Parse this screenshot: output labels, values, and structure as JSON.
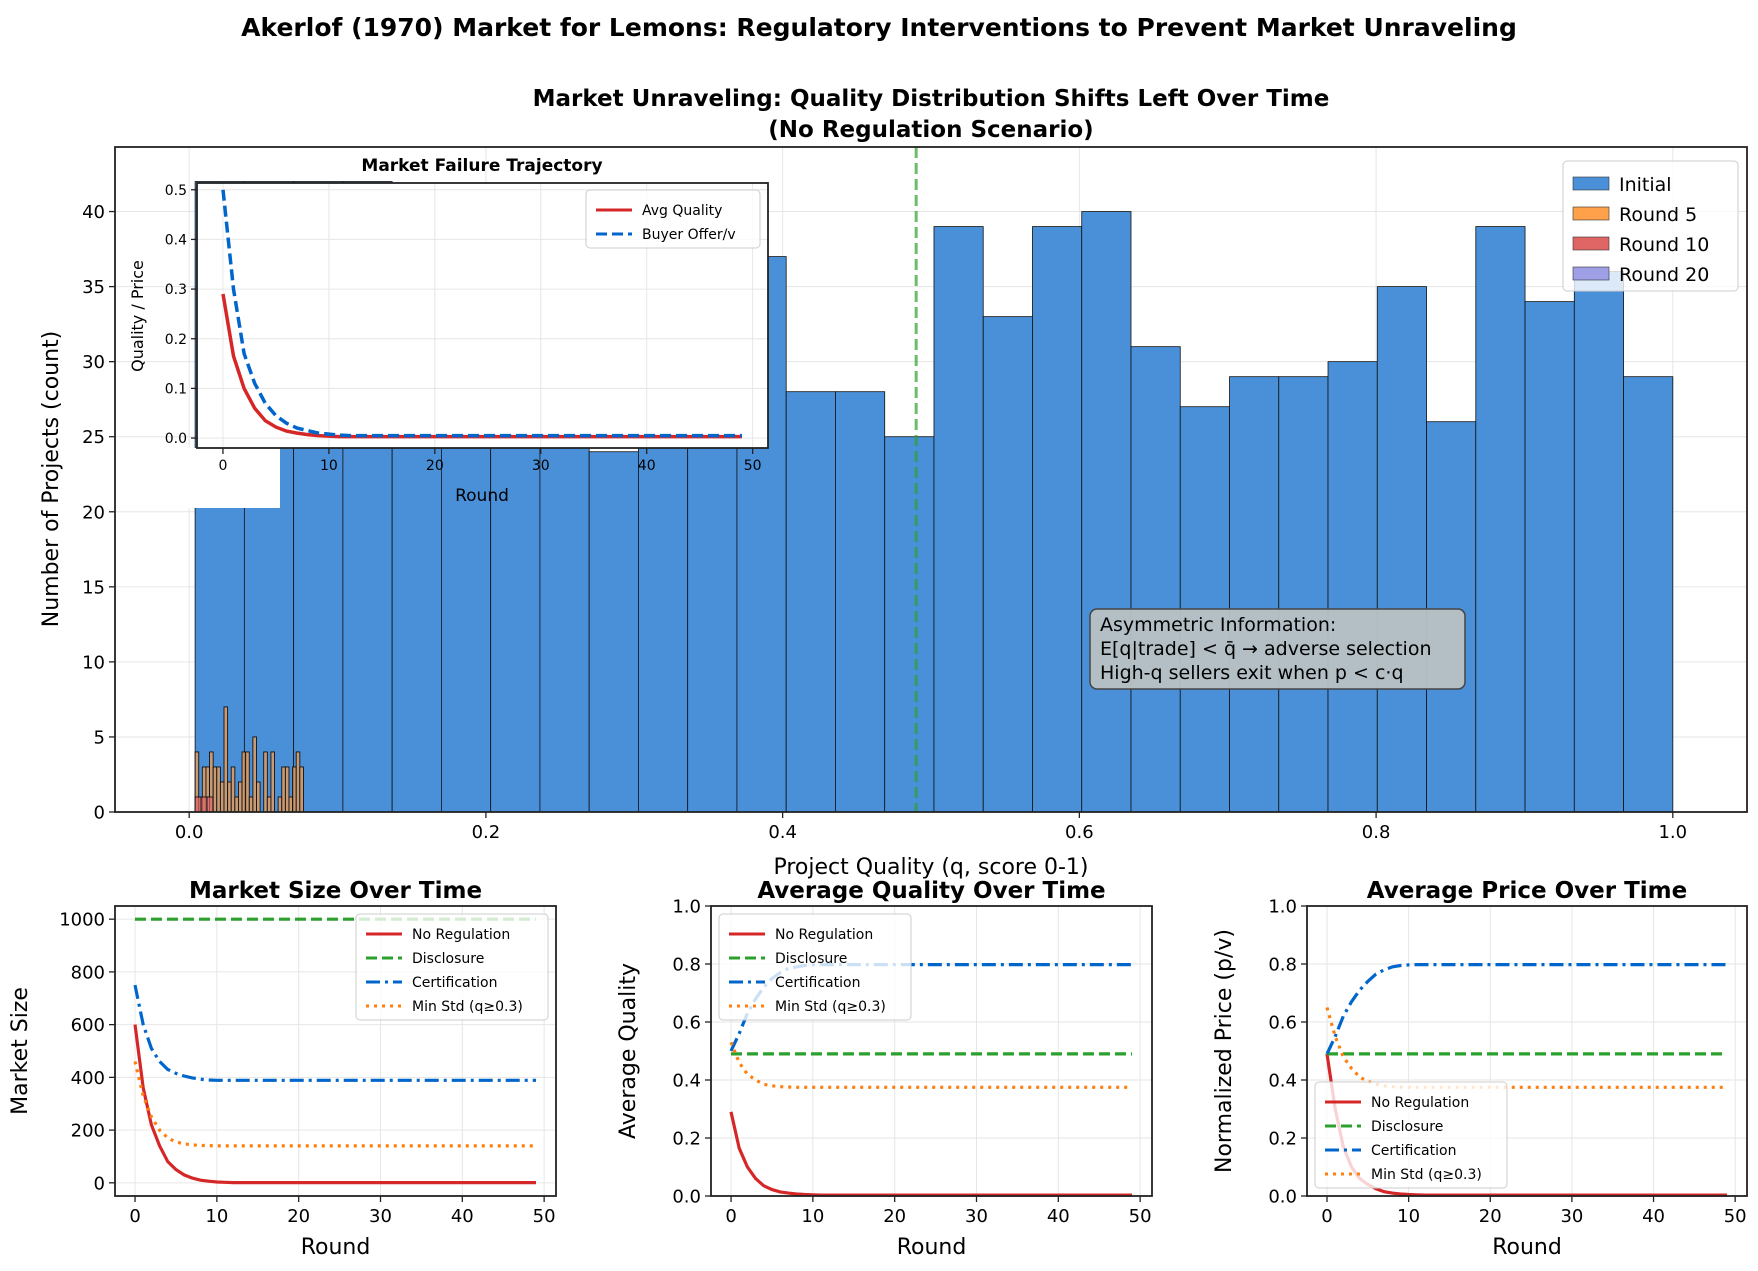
{
  "suptitle": "Akerlof (1970) Market for Lemons: Regulatory Interventions to Prevent Market Unraveling",
  "chart_data": [
    {
      "type": "bar",
      "title_line1": "Market Unraveling: Quality Distribution Shifts Left Over Time",
      "title_line2": "(No Regulation Scenario)",
      "xlabel": "Project Quality (q, score 0-1)",
      "ylabel": "Number of Projects (count)",
      "xlim": [
        -0.05,
        1.05
      ],
      "ylim": [
        0,
        44.3
      ],
      "xticks": [
        "0.0",
        "0.2",
        "0.4",
        "0.6",
        "0.8",
        "1.0"
      ],
      "yticks": [
        "0",
        "5",
        "10",
        "15",
        "20",
        "25",
        "30",
        "35",
        "40"
      ],
      "grid": true,
      "legend_position": "top-right",
      "series": [
        {
          "name": "Initial",
          "color": "#4a90d9",
          "bin_start": 0.004,
          "bin_end": 1.0,
          "values": [
            42,
            42,
            42,
            42,
            36,
            34,
            33,
            35,
            24,
            33,
            36,
            37,
            28,
            28,
            25,
            39,
            33,
            39,
            40,
            31,
            27,
            29,
            29,
            30,
            35,
            26,
            39,
            34,
            36,
            29
          ]
        },
        {
          "name": "Round 5",
          "color": "#ffa04a",
          "bin_start": 0.004,
          "bin_end": 0.077,
          "values": [
            4,
            1,
            3,
            3,
            4,
            3,
            3,
            2,
            7,
            2,
            3,
            1,
            2,
            4,
            4,
            1,
            5,
            2,
            0,
            4,
            1,
            4,
            0,
            1,
            3,
            3,
            1,
            3,
            4,
            3
          ]
        },
        {
          "name": "Round 10",
          "color": "#e06666",
          "bin_start": 0.004,
          "bin_end": 0.016,
          "values": [
            1,
            1,
            1
          ]
        },
        {
          "name": "Round 20",
          "color": "#9f9fe6",
          "values": []
        }
      ],
      "threshold_line": {
        "x": 0.49,
        "color": "#2ca02c"
      },
      "annotation": [
        "Asymmetric Information:",
        "E[q|trade] < q̄ → adverse selection",
        "High-q sellers exit when p < c·q"
      ],
      "inset": {
        "type": "line",
        "title": "Market Failure Trajectory",
        "xlabel": "Round",
        "ylabel": "Quality / Price",
        "xlim": [
          -2.45,
          51.45
        ],
        "ylim": [
          -0.02,
          0.5136
        ],
        "xticks": [
          "0",
          "10",
          "20",
          "30",
          "40",
          "50"
        ],
        "yticks": [
          "0.0",
          "0.1",
          "0.2",
          "0.3",
          "0.4",
          "0.5"
        ],
        "legend_position": "top-right",
        "x": [
          0,
          1,
          2,
          3,
          4,
          5,
          6,
          7,
          8,
          9,
          10,
          11,
          12,
          49
        ],
        "series": [
          {
            "name": "Avg Quality",
            "color": "#d62728",
            "style": "solid",
            "values": [
              0.29,
              0.165,
              0.1,
              0.06,
              0.035,
              0.022,
              0.014,
              0.01,
              0.007,
              0.005,
              0.004,
              0.003,
              0.003,
              0.003
            ]
          },
          {
            "name": "Buyer Offer/v",
            "color": "#0066cc",
            "style": "dashed",
            "values": [
              0.5,
              0.3,
              0.17,
              0.11,
              0.07,
              0.045,
              0.03,
              0.02,
              0.015,
              0.01,
              0.008,
              0.006,
              0.005,
              0.005
            ]
          }
        ]
      }
    },
    {
      "type": "line",
      "title": "Market Size Over Time",
      "xlabel": "Round",
      "ylabel": "Market Size",
      "xlim": [
        -2.45,
        51.45
      ],
      "ylim": [
        -50,
        1050
      ],
      "xticks": [
        "0",
        "10",
        "20",
        "30",
        "40",
        "50"
      ],
      "yticks": [
        "0",
        "200",
        "400",
        "600",
        "800",
        "1000"
      ],
      "legend_position": "top-right",
      "x": [
        0,
        1,
        2,
        3,
        4,
        5,
        6,
        7,
        8,
        9,
        10,
        11,
        12,
        49
      ],
      "series": [
        {
          "name": "No Regulation",
          "color": "#d62728",
          "style": "solid",
          "values": [
            600,
            360,
            220,
            140,
            80,
            50,
            30,
            18,
            10,
            6,
            3,
            2,
            1,
            1
          ]
        },
        {
          "name": "Disclosure",
          "color": "#2ca02c",
          "style": "dashed",
          "values": [
            1000,
            1000,
            1000,
            1000,
            1000,
            1000,
            1000,
            1000,
            1000,
            1000,
            1000,
            1000,
            1000,
            1000
          ]
        },
        {
          "name": "Certification",
          "color": "#0066cc",
          "style": "dashdot",
          "values": [
            750,
            600,
            510,
            460,
            430,
            415,
            405,
            398,
            393,
            390,
            389,
            389,
            389,
            389
          ]
        },
        {
          "name": "Min Std (q≥0.3)",
          "color": "#ff7f0e",
          "style": "dotted",
          "values": [
            460,
            330,
            250,
            200,
            170,
            155,
            148,
            144,
            142,
            141,
            140,
            140,
            140,
            140
          ]
        }
      ]
    },
    {
      "type": "line",
      "title": "Average Quality Over Time",
      "xlabel": "Round",
      "ylabel": "Average Quality",
      "xlim": [
        -2.45,
        51.45
      ],
      "ylim": [
        0,
        1
      ],
      "xticks": [
        "0",
        "10",
        "20",
        "30",
        "40",
        "50"
      ],
      "yticks": [
        "0.0",
        "0.2",
        "0.4",
        "0.6",
        "0.8",
        "1.0"
      ],
      "legend_position": "top-left",
      "x": [
        0,
        1,
        2,
        3,
        4,
        5,
        6,
        7,
        8,
        9,
        10,
        11,
        12,
        49
      ],
      "series": [
        {
          "name": "No Regulation",
          "color": "#d62728",
          "style": "solid",
          "values": [
            0.29,
            0.165,
            0.1,
            0.06,
            0.035,
            0.022,
            0.014,
            0.01,
            0.007,
            0.005,
            0.004,
            0.003,
            0.003,
            0.003
          ]
        },
        {
          "name": "Disclosure",
          "color": "#2ca02c",
          "style": "dashed",
          "values": [
            0.49,
            0.49,
            0.49,
            0.49,
            0.49,
            0.49,
            0.49,
            0.49,
            0.49,
            0.49,
            0.49,
            0.49,
            0.49,
            0.49
          ]
        },
        {
          "name": "Certification",
          "color": "#0066cc",
          "style": "dashdot",
          "values": [
            0.5,
            0.56,
            0.63,
            0.68,
            0.72,
            0.75,
            0.77,
            0.785,
            0.79,
            0.795,
            0.797,
            0.798,
            0.798,
            0.798
          ]
        },
        {
          "name": "Min Std (q≥0.3)",
          "color": "#ff7f0e",
          "style": "dotted",
          "values": [
            0.53,
            0.46,
            0.42,
            0.4,
            0.385,
            0.38,
            0.377,
            0.376,
            0.375,
            0.375,
            0.375,
            0.375,
            0.375,
            0.375
          ]
        }
      ]
    },
    {
      "type": "line",
      "title": "Average Price Over Time",
      "xlabel": "Round",
      "ylabel": "Normalized Price (p/v)",
      "xlim": [
        -2.45,
        51.45
      ],
      "ylim": [
        0,
        1
      ],
      "xticks": [
        "0",
        "10",
        "20",
        "30",
        "40",
        "50"
      ],
      "yticks": [
        "0.0",
        "0.2",
        "0.4",
        "0.6",
        "0.8",
        "1.0"
      ],
      "legend_position": "bottom-left",
      "x": [
        0,
        1,
        2,
        3,
        4,
        5,
        6,
        7,
        8,
        9,
        10,
        11,
        12,
        49
      ],
      "series": [
        {
          "name": "No Regulation",
          "color": "#d62728",
          "style": "solid",
          "values": [
            0.49,
            0.3,
            0.17,
            0.1,
            0.06,
            0.04,
            0.025,
            0.015,
            0.01,
            0.007,
            0.005,
            0.004,
            0.003,
            0.003
          ]
        },
        {
          "name": "Disclosure",
          "color": "#2ca02c",
          "style": "dashed",
          "values": [
            0.49,
            0.49,
            0.49,
            0.49,
            0.49,
            0.49,
            0.49,
            0.49,
            0.49,
            0.49,
            0.49,
            0.49,
            0.49,
            0.49
          ]
        },
        {
          "name": "Certification",
          "color": "#0066cc",
          "style": "dashdot",
          "values": [
            0.49,
            0.55,
            0.62,
            0.67,
            0.71,
            0.74,
            0.765,
            0.78,
            0.79,
            0.795,
            0.797,
            0.798,
            0.798,
            0.798
          ]
        },
        {
          "name": "Min Std (q≥0.3)",
          "color": "#ff7f0e",
          "style": "dotted",
          "values": [
            0.65,
            0.55,
            0.48,
            0.44,
            0.41,
            0.395,
            0.385,
            0.38,
            0.377,
            0.376,
            0.375,
            0.375,
            0.375,
            0.375
          ]
        }
      ]
    }
  ]
}
